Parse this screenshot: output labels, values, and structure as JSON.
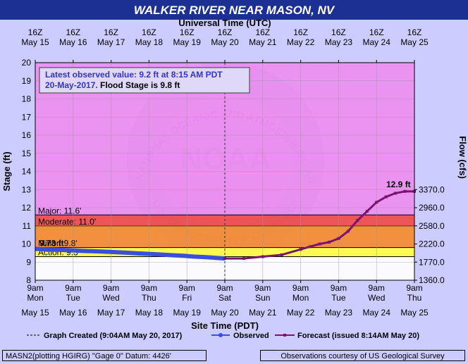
{
  "title": "WALKER RIVER NEAR MASON, NV",
  "top_axis_label": "Universal Time (UTC)",
  "bottom_axis_label": "Site Time (PDT)",
  "left_axis_label": "Stage (ft)",
  "right_axis_label": "Flow (cfs)",
  "info_box": {
    "line1": "Latest observed value: 9.2 ft at 8:15 AM PDT",
    "line2_date": "20-May-2017.",
    "line2_flood": " Flood Stage is 9.8 ft"
  },
  "legend": {
    "created": "Graph Created (9:04AM May 20, 2017)",
    "observed": "Observed",
    "forecast": "Forecast (issued 8:14AM May 20)"
  },
  "footer_left": "MASN2(plotting HGIRG) \"Gage 0\" Datum: 4426'",
  "footer_right": "Observations courtesy of US Geological Survey",
  "watermark": {
    "logo_text": "NOAA",
    "arc_top": "NATIONAL OCEANIC AND ATMOSPHERIC ADMINISTRATION",
    "arc_bottom": "U.S. DEPARTMENT OF COMMERCE"
  },
  "colors": {
    "banner": "#1c2f93",
    "plot_bg": "#ee88ee",
    "major_band": "#f04848",
    "moderate_band": "#f68a2a",
    "minor_band": "#fbd24a",
    "action_band": "#ffff40",
    "below_action": "#ffffff",
    "observed": "#3a4fdc",
    "forecast": "#7a1470",
    "info_text": "#3333cc"
  },
  "chart_data": {
    "type": "line",
    "title": "WALKER RIVER NEAR MASON, NV",
    "xlabel": "Site Time (PDT)",
    "ylabel": "Stage (ft)",
    "y2label": "Flow (cfs)",
    "ylim": [
      8,
      20
    ],
    "xlim_days": [
      0,
      10
    ],
    "grid": true,
    "y_ticks": [
      "8",
      "9",
      "10",
      "11",
      "12",
      "13",
      "14",
      "15",
      "16",
      "17",
      "18",
      "19",
      "20"
    ],
    "top_ticks": [
      {
        "time": "16Z",
        "date": "May 15"
      },
      {
        "time": "16Z",
        "date": "May 16"
      },
      {
        "time": "16Z",
        "date": "May 17"
      },
      {
        "time": "16Z",
        "date": "May 18"
      },
      {
        "time": "16Z",
        "date": "May 19"
      },
      {
        "time": "16Z",
        "date": "May 20"
      },
      {
        "time": "16Z",
        "date": "May 21"
      },
      {
        "time": "16Z",
        "date": "May 22"
      },
      {
        "time": "16Z",
        "date": "May 23"
      },
      {
        "time": "16Z",
        "date": "May 24"
      },
      {
        "time": "16Z",
        "date": "May 25"
      }
    ],
    "bottom_ticks": [
      {
        "time": "9am",
        "day": "Mon",
        "date": "May 15"
      },
      {
        "time": "9am",
        "day": "Tue",
        "date": "May 16"
      },
      {
        "time": "9am",
        "day": "Wed",
        "date": "May 17"
      },
      {
        "time": "9am",
        "day": "Thu",
        "date": "May 18"
      },
      {
        "time": "9am",
        "day": "Fri",
        "date": "May 19"
      },
      {
        "time": "9am",
        "day": "Sat",
        "date": "May 20"
      },
      {
        "time": "9am",
        "day": "Sun",
        "date": "May 21"
      },
      {
        "time": "9am",
        "day": "Mon",
        "date": "May 22"
      },
      {
        "time": "9am",
        "day": "Tue",
        "date": "May 23"
      },
      {
        "time": "9am",
        "day": "Wed",
        "date": "May 24"
      },
      {
        "time": "9am",
        "day": "Thu",
        "date": "May 25"
      }
    ],
    "flow_ticks": [
      {
        "stage": 8.0,
        "label": "1360.0"
      },
      {
        "stage": 9.0,
        "label": "1770.0"
      },
      {
        "stage": 10.0,
        "label": "2220.0"
      },
      {
        "stage": 11.0,
        "label": "2580.0"
      },
      {
        "stage": 12.0,
        "label": "2960.0"
      },
      {
        "stage": 13.0,
        "label": "3370.0"
      }
    ],
    "flood_categories": [
      {
        "name": "Major",
        "label": "Major: 11.6'",
        "stage": 11.6
      },
      {
        "name": "Moderate",
        "label": "Moderate: 11.0'",
        "stage": 11.0
      },
      {
        "name": "Minor",
        "label": "Minor: 9.8'",
        "stage": 9.8
      },
      {
        "name": "Action",
        "label": "Action: 9.3'",
        "stage": 9.3
      }
    ],
    "observed_label": "9.73 ft",
    "forecast_label": "12.9 ft",
    "observed_days": [
      0,
      0.3,
      0.6,
      0.9,
      1.2,
      1.5,
      1.8,
      2.1,
      2.4,
      2.7,
      3.0,
      3.3,
      3.6,
      3.9,
      4.2,
      4.5,
      4.8,
      5.0
    ],
    "observed_stage": [
      9.73,
      9.7,
      9.68,
      9.65,
      9.62,
      9.6,
      9.58,
      9.55,
      9.52,
      9.48,
      9.45,
      9.42,
      9.38,
      9.35,
      9.3,
      9.27,
      9.23,
      9.2
    ],
    "forecast_days": [
      5.0,
      5.5,
      6.0,
      6.5,
      7.0,
      7.25,
      7.5,
      7.75,
      8.0,
      8.25,
      8.5,
      8.75,
      9.0,
      9.25,
      9.5,
      9.75,
      10.0
    ],
    "forecast_stage": [
      9.2,
      9.2,
      9.3,
      9.4,
      9.7,
      9.85,
      10.0,
      10.1,
      10.3,
      10.7,
      11.3,
      11.8,
      12.3,
      12.6,
      12.8,
      12.9,
      12.9
    ]
  }
}
